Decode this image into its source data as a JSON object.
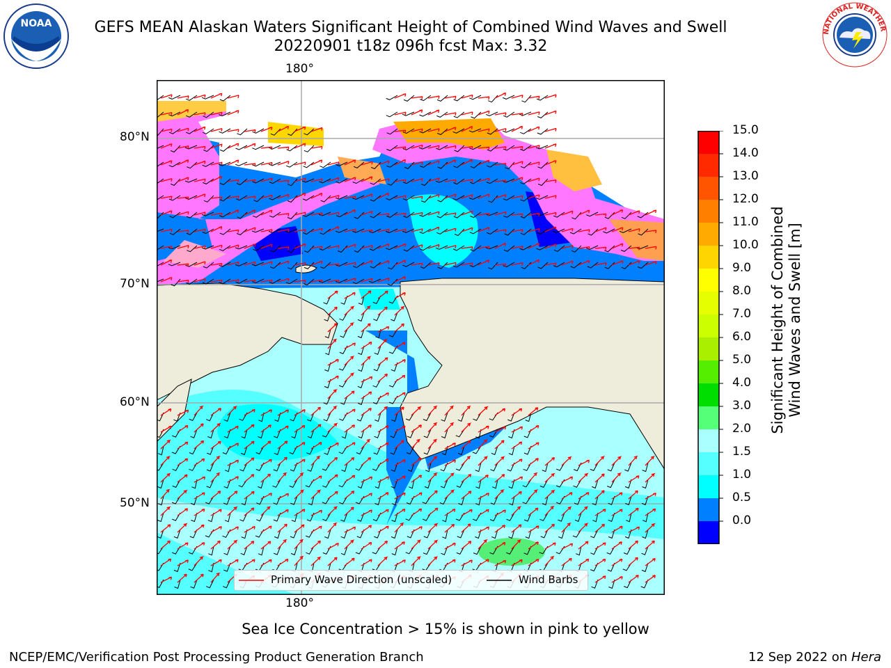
{
  "title": {
    "line1": "GEFS MEAN Alaskan Waters Significant Height of Combined Wind Waves and Swell",
    "line2": "20220901 t18z 096h fcst   Max: 3.32"
  },
  "map": {
    "lon_label_top": "180°",
    "lon_label_bottom": "180°",
    "lat_labels": [
      "80°N",
      "70°N",
      "60°N",
      "50°N"
    ]
  },
  "legend": {
    "wave_label": "Primary Wave Direction (unscaled)",
    "wind_label": "Wind Barbs",
    "wave_color": "#ff0000",
    "wind_color": "#000000"
  },
  "colorbar": {
    "label_line1": "Significant Height of Combined",
    "label_line2": "Wind Waves and Swell [m]",
    "ticks": [
      "15.0",
      "14.0",
      "13.0",
      "12.0",
      "11.0",
      "10.0",
      "9.0",
      "8.0",
      "7.0",
      "6.0",
      "5.0",
      "4.0",
      "3.0",
      "2.0",
      "1.5",
      "1.0",
      "0.5",
      "0.0"
    ],
    "colors_top_to_bottom": [
      "#ff0000",
      "#ff2a00",
      "#ff5500",
      "#ff8000",
      "#ffaa00",
      "#ffd500",
      "#ffff00",
      "#e6ff00",
      "#ccff00",
      "#aaee00",
      "#55ee00",
      "#00dd00",
      "#55ff77",
      "#aaffff",
      "#55ffff",
      "#00ffff",
      "#0080ff",
      "#0000ff"
    ]
  },
  "subtitle": "Sea Ice Concentration > 15% is shown in pink to yellow",
  "footer": {
    "left": "NCEP/EMC/Verification Post Processing Product Generation Branch",
    "right_date": "12 Sep 2022 on ",
    "right_host": "Hera"
  },
  "logos": {
    "noaa_text": "NOAA",
    "nws_text": "NATIONAL WEATHER SERVICE"
  }
}
